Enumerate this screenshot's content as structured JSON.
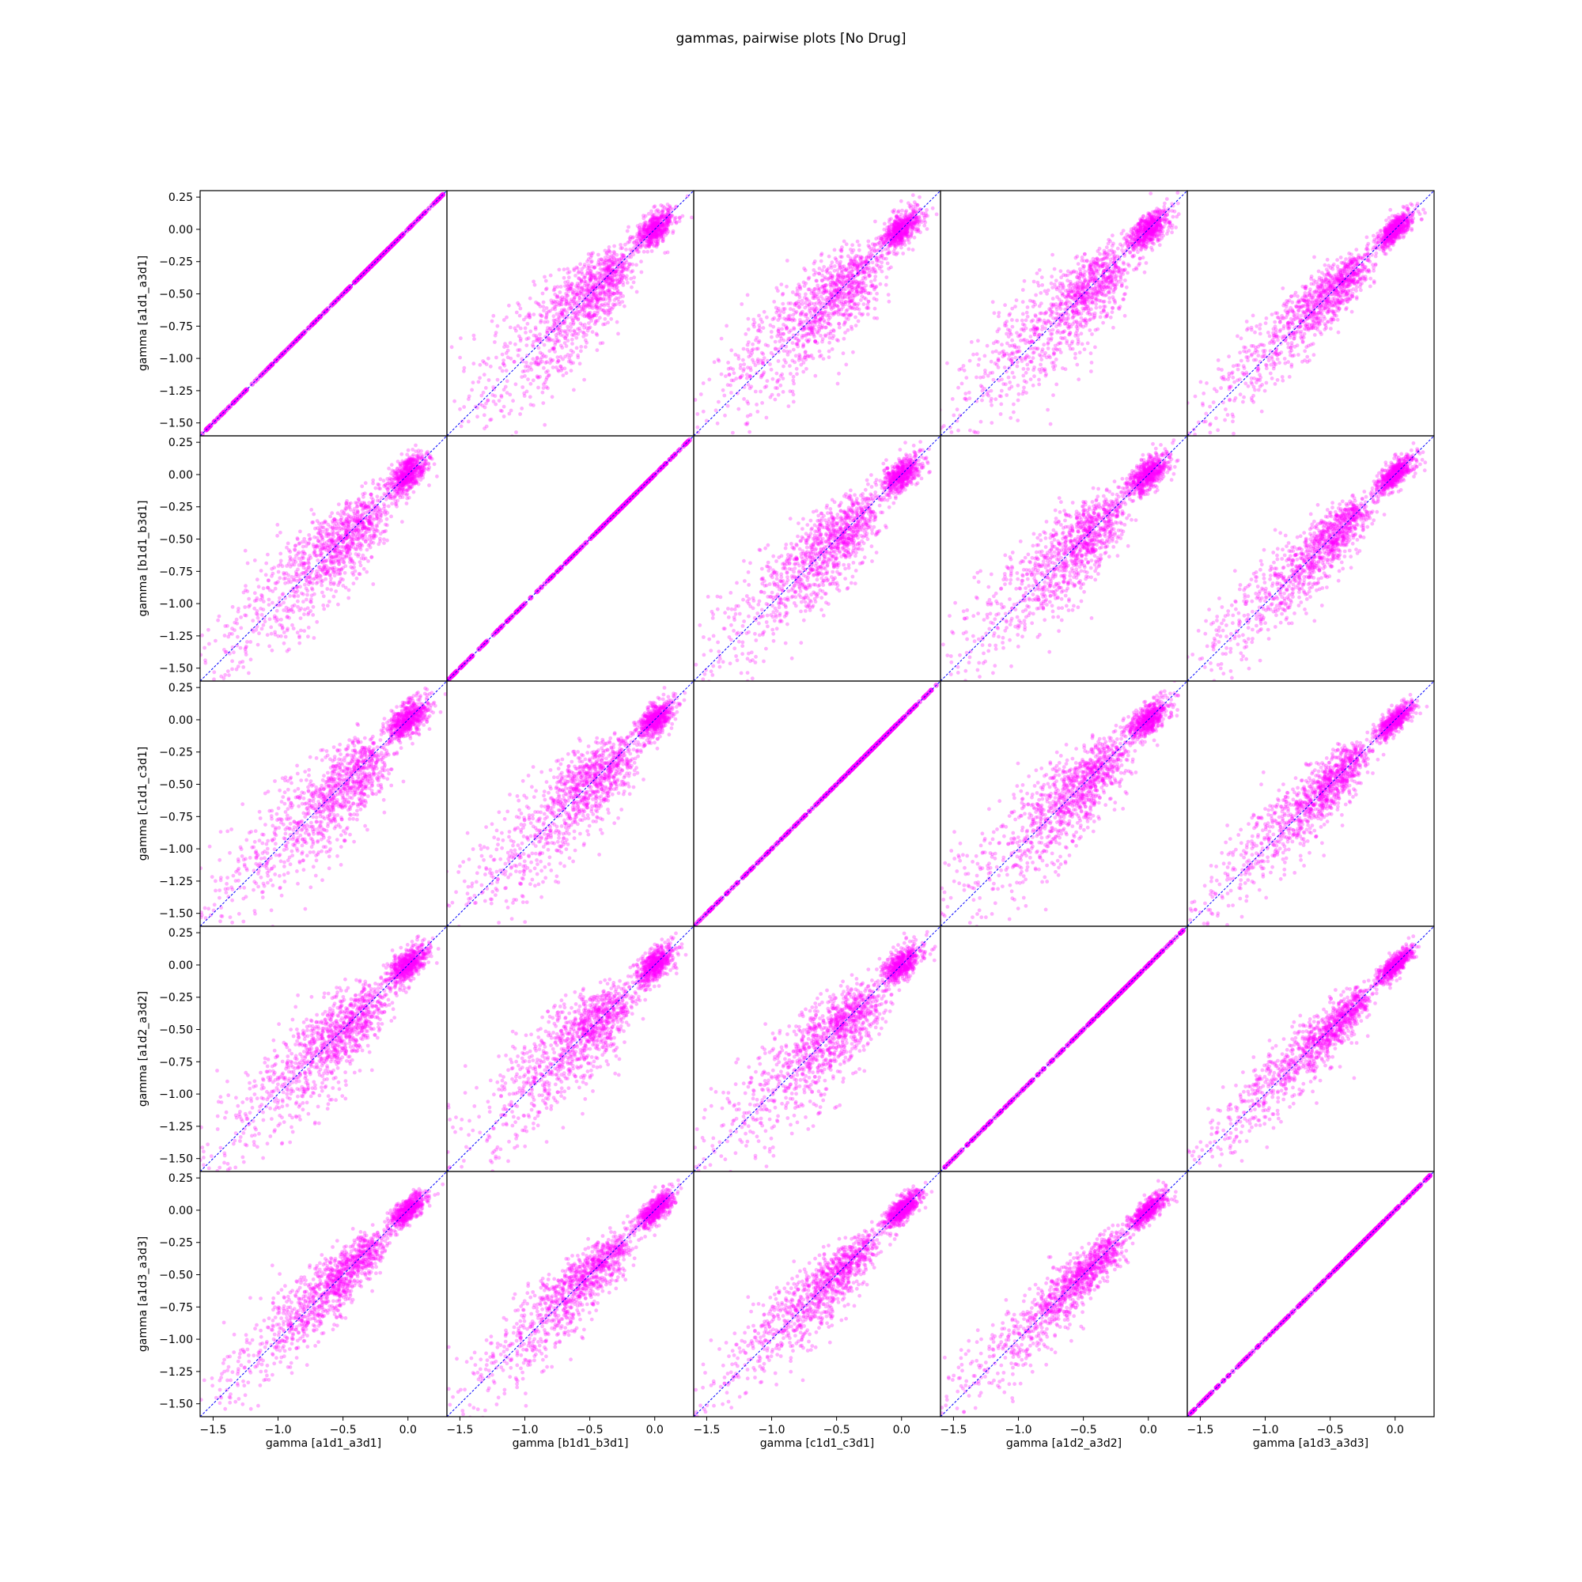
{
  "chart_data": {
    "type": "scatter",
    "title": "gammas, pairwise plots [No Drug]",
    "variables": [
      "a1d1_a3d1",
      "b1d1_b3d1",
      "c1d1_c3d1",
      "a1d2_a3d2",
      "a1d3_a3d3"
    ],
    "xlabels": [
      "gamma [a1d1_a3d1]",
      "gamma [b1d1_b3d1]",
      "gamma [c1d1_c3d1]",
      "gamma [a1d2_a3d2]",
      "gamma [a1d3_a3d3]"
    ],
    "ylabels": [
      "gamma [a1d1_a3d1]",
      "gamma [b1d1_b3d1]",
      "gamma [c1d1_c3d1]",
      "gamma [a1d2_a3d2]",
      "gamma [a1d3_a3d3]"
    ],
    "xlim": [
      -1.6,
      0.3
    ],
    "ylim": [
      -1.6,
      0.3
    ],
    "xticks": [
      -1.5,
      -1.0,
      -0.5,
      0.0
    ],
    "xtick_labels": [
      "−1.5",
      "−1.0",
      "−0.5",
      "0.0"
    ],
    "yticks": [
      -1.5,
      -1.25,
      -1.0,
      -0.75,
      -0.5,
      -0.25,
      0.0,
      0.25
    ],
    "ytick_labels": [
      "−1.50",
      "−1.25",
      "−1.00",
      "−0.75",
      "−0.50",
      "−0.25",
      "0.00",
      "0.25"
    ],
    "grid": false,
    "layout": "5x5 pairwise matrix",
    "point_color": "#ff00ff",
    "point_alpha": 0.3,
    "diagonal_line_color": "#0000ff",
    "diagonal_line_style": "dashed",
    "diagonal_line": [
      [
        -1.6,
        -1.6
      ],
      [
        0.3,
        0.3
      ]
    ],
    "distribution_note": "Points concentrate densely near (0, 0) and spread out along the y = x line toward (-1.5, -1.5); diagonal panels (variable vs itself) lie exactly on y = x.",
    "spread": [
      [
        0.0,
        0.22,
        0.24,
        0.22,
        0.16
      ],
      [
        0.22,
        0.0,
        0.22,
        0.22,
        0.16
      ],
      [
        0.24,
        0.22,
        0.0,
        0.22,
        0.16
      ],
      [
        0.22,
        0.22,
        0.22,
        0.0,
        0.14
      ],
      [
        0.16,
        0.16,
        0.16,
        0.14,
        0.0
      ]
    ]
  }
}
